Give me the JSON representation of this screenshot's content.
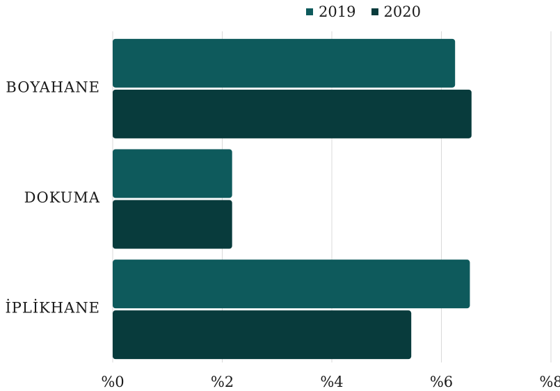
{
  "chart_data": {
    "type": "bar",
    "orientation": "horizontal",
    "categories": [
      "BOYAHANE",
      "DOKUMA",
      "İPLİKHANE"
    ],
    "series": [
      {
        "name": "2019",
        "color": "#0e5a5c",
        "values": [
          6.25,
          2.18,
          6.52
        ]
      },
      {
        "name": "2020",
        "color": "#083b3c",
        "values": [
          6.55,
          2.18,
          5.45
        ]
      }
    ],
    "x_ticks": [
      "%0",
      "%2",
      "%4",
      "%6",
      "%8"
    ],
    "xlim": [
      0,
      8
    ],
    "grid": "vertical",
    "legend_position": "top",
    "title": "",
    "xlabel": "",
    "ylabel": ""
  }
}
